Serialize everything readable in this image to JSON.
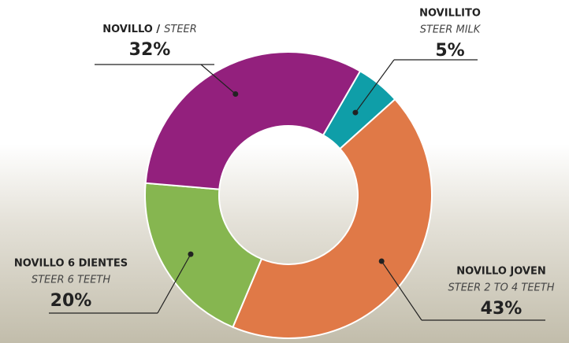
{
  "chart_data": {
    "type": "donut",
    "categories": [
      {
        "name": "NOVILLITO",
        "sub": "STEER MILK"
      },
      {
        "name": "NOVILLO JOVEN",
        "sub": "STEER 2 TO 4 TEETH"
      },
      {
        "name": "NOVILLO 6 DIENTES",
        "sub": "STEER 6 TEETH"
      },
      {
        "name": "NOVILLO /",
        "sub": "STEER"
      }
    ],
    "values": [
      5,
      43,
      20,
      32
    ],
    "value_labels": [
      "5%",
      "43%",
      "20%",
      "32%"
    ],
    "colors": [
      "#0f9ea8",
      "#e07947",
      "#86b650",
      "#93207d"
    ]
  }
}
